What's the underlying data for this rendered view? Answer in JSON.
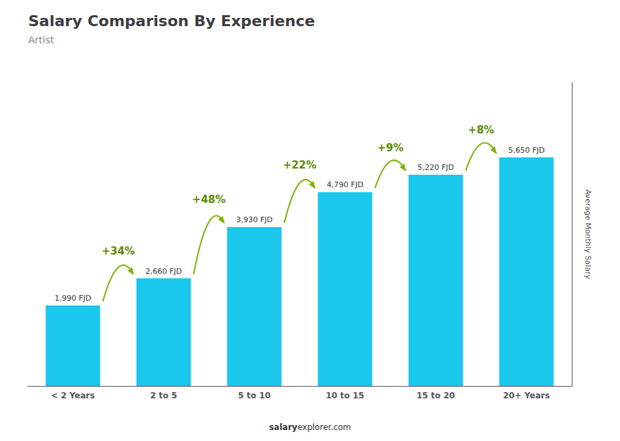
{
  "chart_data": {
    "type": "bar",
    "title": "Salary Comparison By Experience",
    "subtitle": "Artist",
    "categories": [
      "< 2 Years",
      "2 to 5",
      "5 to 10",
      "10 to 15",
      "15 to 20",
      "20+ Years"
    ],
    "values": [
      1990,
      2660,
      3930,
      4790,
      5220,
      5650
    ],
    "value_labels": [
      "1,990 FJD",
      "2,660 FJD",
      "3,930 FJD",
      "4,790 FJD",
      "5,220 FJD",
      "5,650 FJD"
    ],
    "data_labels": true,
    "annotations": [
      "+34%",
      "+48%",
      "+22%",
      "+9%",
      "+8%"
    ],
    "ylabel": "Average Monthly Salary",
    "footer": [
      "salary",
      "explorer.com"
    ],
    "color": "#1ac8ed",
    "ylim": [
      0,
      7500
    ],
    "grid": false,
    "tick_labels": "x"
  }
}
